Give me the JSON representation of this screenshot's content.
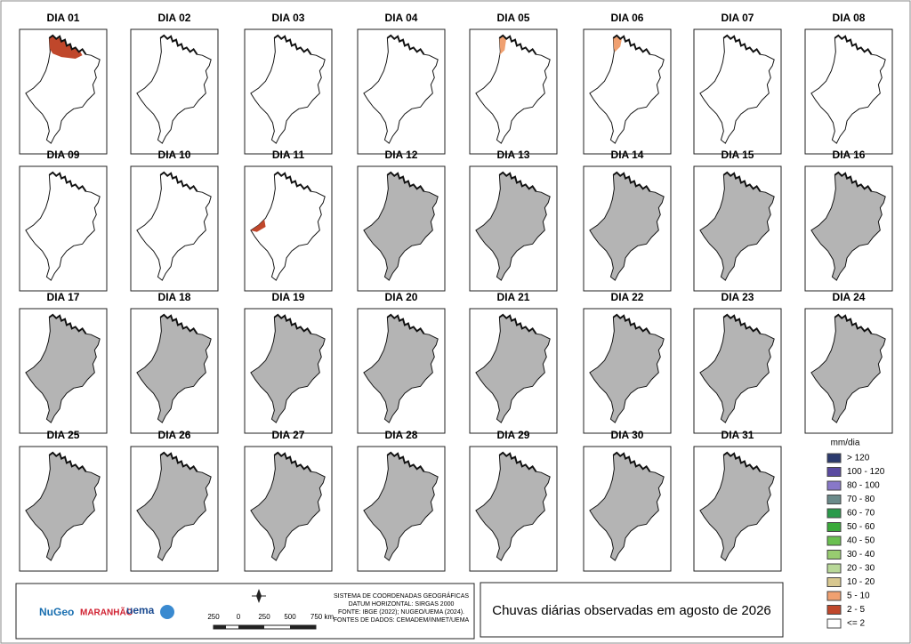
{
  "panels": [
    {
      "label": "DIA 01",
      "fill": "#ffffff",
      "rain": "#c0472b"
    },
    {
      "label": "DIA 02",
      "fill": "#ffffff"
    },
    {
      "label": "DIA 03",
      "fill": "#ffffff"
    },
    {
      "label": "DIA 04",
      "fill": "#ffffff"
    },
    {
      "label": "DIA 05",
      "fill": "#ffffff",
      "rain": "#f0a070"
    },
    {
      "label": "DIA 06",
      "fill": "#ffffff",
      "rain": "#f0a070"
    },
    {
      "label": "DIA 07",
      "fill": "#ffffff"
    },
    {
      "label": "DIA 08",
      "fill": "#ffffff"
    },
    {
      "label": "DIA 09",
      "fill": "#ffffff"
    },
    {
      "label": "DIA 10",
      "fill": "#ffffff"
    },
    {
      "label": "DIA 11",
      "fill": "#ffffff",
      "rain": "#c0472b"
    },
    {
      "label": "DIA 12",
      "fill": "#b4b4b4"
    },
    {
      "label": "DIA 13",
      "fill": "#b4b4b4"
    },
    {
      "label": "DIA 14",
      "fill": "#b4b4b4"
    },
    {
      "label": "DIA 15",
      "fill": "#b4b4b4"
    },
    {
      "label": "DIA 16",
      "fill": "#b4b4b4"
    },
    {
      "label": "DIA 17",
      "fill": "#b4b4b4"
    },
    {
      "label": "DIA 18",
      "fill": "#b4b4b4"
    },
    {
      "label": "DIA 19",
      "fill": "#b4b4b4"
    },
    {
      "label": "DIA 20",
      "fill": "#b4b4b4"
    },
    {
      "label": "DIA 21",
      "fill": "#b4b4b4"
    },
    {
      "label": "DIA 22",
      "fill": "#b4b4b4"
    },
    {
      "label": "DIA 23",
      "fill": "#b4b4b4"
    },
    {
      "label": "DIA 24",
      "fill": "#b4b4b4"
    },
    {
      "label": "DIA 25",
      "fill": "#b4b4b4"
    },
    {
      "label": "DIA 26",
      "fill": "#b4b4b4"
    },
    {
      "label": "DIA 27",
      "fill": "#b4b4b4"
    },
    {
      "label": "DIA 28",
      "fill": "#b4b4b4"
    },
    {
      "label": "DIA 29",
      "fill": "#b4b4b4"
    },
    {
      "label": "DIA 30",
      "fill": "#b4b4b4"
    },
    {
      "label": "DIA 31",
      "fill": "#b4b4b4"
    }
  ],
  "legend": {
    "title": "mm/dia",
    "items": [
      {
        "label": "> 120",
        "color": "#2b3a6e"
      },
      {
        "label": "100 - 120",
        "color": "#5a4aa0"
      },
      {
        "label": "80 - 100",
        "color": "#8878c8"
      },
      {
        "label": "70 - 80",
        "color": "#6a8a8a"
      },
      {
        "label": "60 - 70",
        "color": "#2a9a4a"
      },
      {
        "label": "50 - 60",
        "color": "#3aaa3a"
      },
      {
        "label": "40 - 50",
        "color": "#6ac050"
      },
      {
        "label": "30 - 40",
        "color": "#98cc70"
      },
      {
        "label": "20 - 30",
        "color": "#b8d898"
      },
      {
        "label": "10 - 20",
        "color": "#d8c890"
      },
      {
        "label": "5 - 10",
        "color": "#f0a070"
      },
      {
        "label": "2 - 5",
        "color": "#c0472b"
      },
      {
        "label": "<= 2",
        "color": "#ffffff"
      }
    ]
  },
  "footer": {
    "logos": [
      "NuGeo",
      "MARANHÃO",
      "uema"
    ],
    "scale": [
      "250",
      "0",
      "250",
      "500",
      "750 km"
    ],
    "info": [
      "SISTEMA DE COORDENADAS GEOGRÁFICAS",
      "DATUM HORIZONTAL: SIRGAS 2000",
      "FONTE: IBGE (2022); NUGEO/UEMA (2024).",
      "FONTES DE DADOS: CEMADEM/INMET/UEMA"
    ]
  },
  "title": "Chuvas diárias observadas em agosto de 2026"
}
